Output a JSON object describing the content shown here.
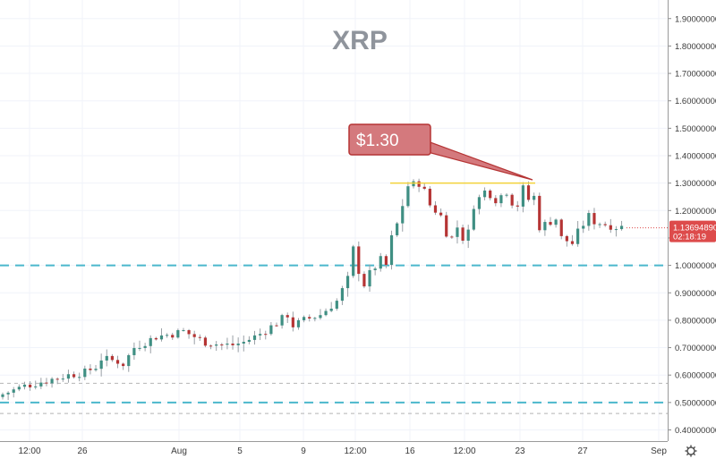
{
  "chart_data": {
    "type": "candlestick",
    "title": "XRP",
    "ylim": [
      0.38,
      1.92
    ],
    "y_ticks": [
      "1.90000000",
      "1.80000000",
      "1.70000000",
      "1.60000000",
      "1.50000000",
      "1.40000000",
      "1.30000000",
      "1.20000000",
      "1.10000000",
      "1.00000000",
      "0.90000000",
      "0.80000000",
      "0.70000000",
      "0.60000000",
      "0.50000000",
      "0.40000000"
    ],
    "x_ticks": [
      "12:00",
      "26",
      "Aug",
      "5",
      "9",
      "12:00",
      "16",
      "12:00",
      "23",
      "27",
      "Sep"
    ],
    "current_price": "1.13694890",
    "countdown": "02:18:19",
    "annotation": {
      "text": "$1.30",
      "value": 1.3
    },
    "levels": [
      {
        "value": 1.0,
        "style": "dashed-thick",
        "color": "#4bb8cc"
      },
      {
        "value": 0.5,
        "style": "dashed-thick",
        "color": "#4bb8cc"
      },
      {
        "value": 0.57,
        "style": "dashed-thin",
        "color": "#b5b5b5"
      },
      {
        "value": 0.46,
        "style": "dashed-thin",
        "color": "#b5b5b5"
      }
    ],
    "colors": {
      "up": "#3f8f83",
      "down": "#b53434",
      "resistance": "#f2d23a",
      "callout_fill": "#d4797d",
      "callout_stroke": "#b53434",
      "price_tag": "#dd4b4b"
    },
    "resistance_segment": {
      "value": 1.3
    },
    "path_anchors": [
      [
        0,
        0.53
      ],
      [
        4,
        0.56
      ],
      [
        8,
        0.58
      ],
      [
        12,
        0.6
      ],
      [
        15,
        0.61
      ],
      [
        17,
        0.63
      ],
      [
        18,
        0.66
      ],
      [
        21,
        0.65
      ],
      [
        22,
        0.64
      ],
      [
        24,
        0.7
      ],
      [
        26,
        0.72
      ],
      [
        28,
        0.74
      ],
      [
        31,
        0.75
      ],
      [
        33,
        0.76
      ],
      [
        35,
        0.74
      ],
      [
        37,
        0.72
      ],
      [
        40,
        0.71
      ],
      [
        42,
        0.71
      ],
      [
        44,
        0.72
      ],
      [
        47,
        0.75
      ],
      [
        50,
        0.79
      ],
      [
        52,
        0.82
      ],
      [
        53,
        0.78
      ],
      [
        55,
        0.8
      ],
      [
        58,
        0.82
      ],
      [
        61,
        0.87
      ],
      [
        63,
        0.95
      ],
      [
        64,
        1.06
      ],
      [
        65,
        0.98
      ],
      [
        66,
        0.93
      ],
      [
        67,
        0.97
      ],
      [
        69,
        1.02
      ],
      [
        70,
        1.0
      ],
      [
        71,
        1.1
      ],
      [
        72,
        1.15
      ],
      [
        73,
        1.22
      ],
      [
        74,
        1.29
      ],
      [
        76,
        1.3
      ],
      [
        77,
        1.27
      ],
      [
        78,
        1.22
      ],
      [
        80,
        1.18
      ],
      [
        81,
        1.12
      ],
      [
        82,
        1.1
      ],
      [
        83,
        1.14
      ],
      [
        84,
        1.1
      ],
      [
        85,
        1.12
      ],
      [
        86,
        1.22
      ],
      [
        88,
        1.27
      ],
      [
        89,
        1.26
      ],
      [
        90,
        1.24
      ],
      [
        92,
        1.27
      ],
      [
        93,
        1.23
      ],
      [
        94,
        1.22
      ],
      [
        95,
        1.28
      ],
      [
        96,
        1.24
      ],
      [
        97,
        1.25
      ],
      [
        98,
        1.14
      ],
      [
        99,
        1.15
      ],
      [
        101,
        1.17
      ],
      [
        102,
        1.1
      ],
      [
        104,
        1.08
      ],
      [
        105,
        1.12
      ],
      [
        107,
        1.18
      ],
      [
        108,
        1.16
      ],
      [
        110,
        1.15
      ],
      [
        112,
        1.14
      ],
      [
        113,
        1.14
      ]
    ]
  }
}
